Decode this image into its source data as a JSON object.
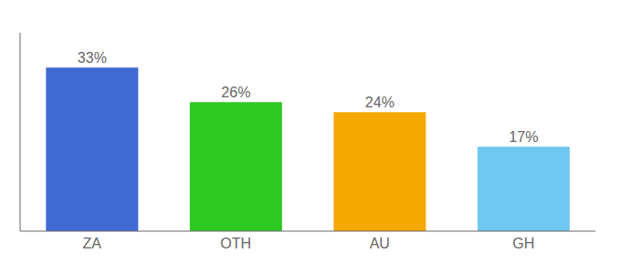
{
  "chart_data": {
    "type": "bar",
    "categories": [
      "ZA",
      "OTH",
      "AU",
      "GH"
    ],
    "values": [
      33,
      26,
      24,
      17
    ],
    "value_labels": [
      "33%",
      "26%",
      "24%",
      "17%"
    ],
    "colors": [
      "#4169d4",
      "#2dc820",
      "#f5a800",
      "#6fc8f0"
    ],
    "ylim": [
      0,
      40
    ],
    "data_labels": true,
    "tick_labels": "x",
    "grid": false
  }
}
